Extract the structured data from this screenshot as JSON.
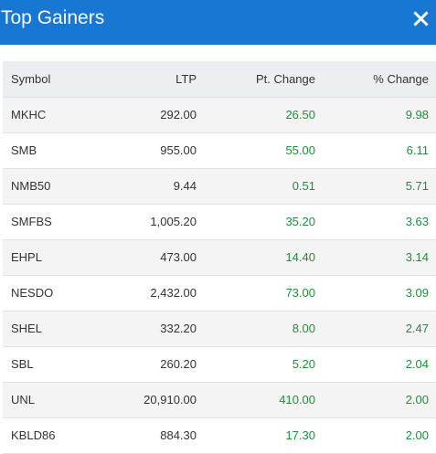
{
  "dialog": {
    "title": "Top Gainers",
    "close_icon": "close-icon"
  },
  "table": {
    "headers": {
      "symbol": "Symbol",
      "ltp": "LTP",
      "pt_change": "Pt. Change",
      "pct_change": "% Change"
    },
    "rows": [
      {
        "symbol": "MKHC",
        "ltp": "292.00",
        "pt_change": "26.50",
        "pct_change": "9.98"
      },
      {
        "symbol": "SMB",
        "ltp": "955.00",
        "pt_change": "55.00",
        "pct_change": "6.11"
      },
      {
        "symbol": "NMB50",
        "ltp": "9.44",
        "pt_change": "0.51",
        "pct_change": "5.71"
      },
      {
        "symbol": "SMFBS",
        "ltp": "1,005.20",
        "pt_change": "35.20",
        "pct_change": "3.63"
      },
      {
        "symbol": "EHPL",
        "ltp": "473.00",
        "pt_change": "14.40",
        "pct_change": "3.14"
      },
      {
        "symbol": "NESDO",
        "ltp": "2,432.00",
        "pt_change": "73.00",
        "pct_change": "3.09"
      },
      {
        "symbol": "SHEL",
        "ltp": "332.20",
        "pt_change": "8.00",
        "pct_change": "2.47"
      },
      {
        "symbol": "SBL",
        "ltp": "260.20",
        "pt_change": "5.20",
        "pct_change": "2.04"
      },
      {
        "symbol": "UNL",
        "ltp": "20,910.00",
        "pt_change": "410.00",
        "pct_change": "2.00"
      },
      {
        "symbol": "KBLD86",
        "ltp": "884.30",
        "pt_change": "17.30",
        "pct_change": "2.00"
      }
    ]
  },
  "colors": {
    "header_bg": "#1877d2",
    "positive": "#1e8f3a"
  }
}
